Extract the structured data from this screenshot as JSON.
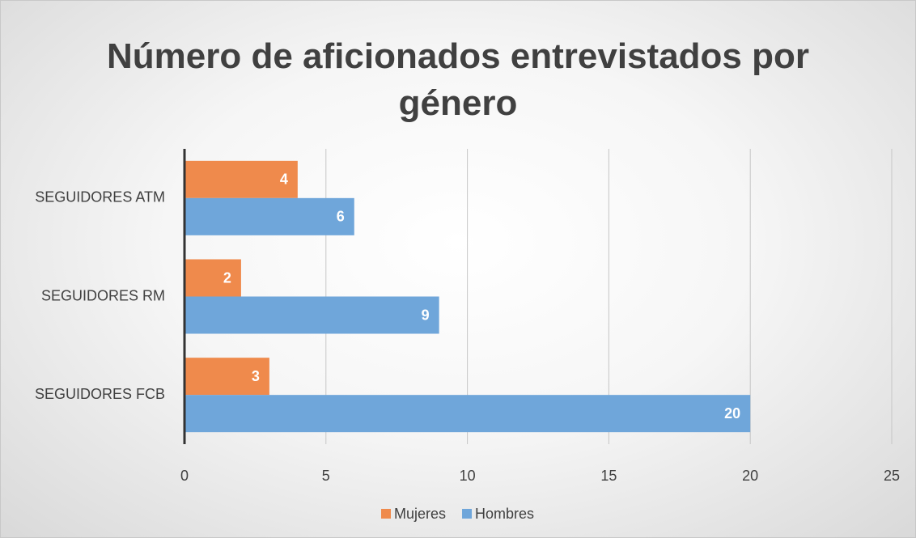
{
  "chart_data": {
    "type": "barh",
    "title": "Número de aficionados entrevistados por género",
    "categories": [
      "SEGUIDORES ATM",
      "SEGUIDORES RM",
      "SEGUIDORES FCB"
    ],
    "series": [
      {
        "name": "Mujeres",
        "color": "#ef8a4c",
        "values": [
          4,
          2,
          3
        ]
      },
      {
        "name": "Hombres",
        "color": "#6fa6da",
        "values": [
          6,
          9,
          20
        ]
      }
    ],
    "xlim": [
      0,
      25
    ],
    "xticks": [
      0,
      5,
      10,
      15,
      20,
      25
    ],
    "grid": true,
    "legend": "bottom"
  }
}
